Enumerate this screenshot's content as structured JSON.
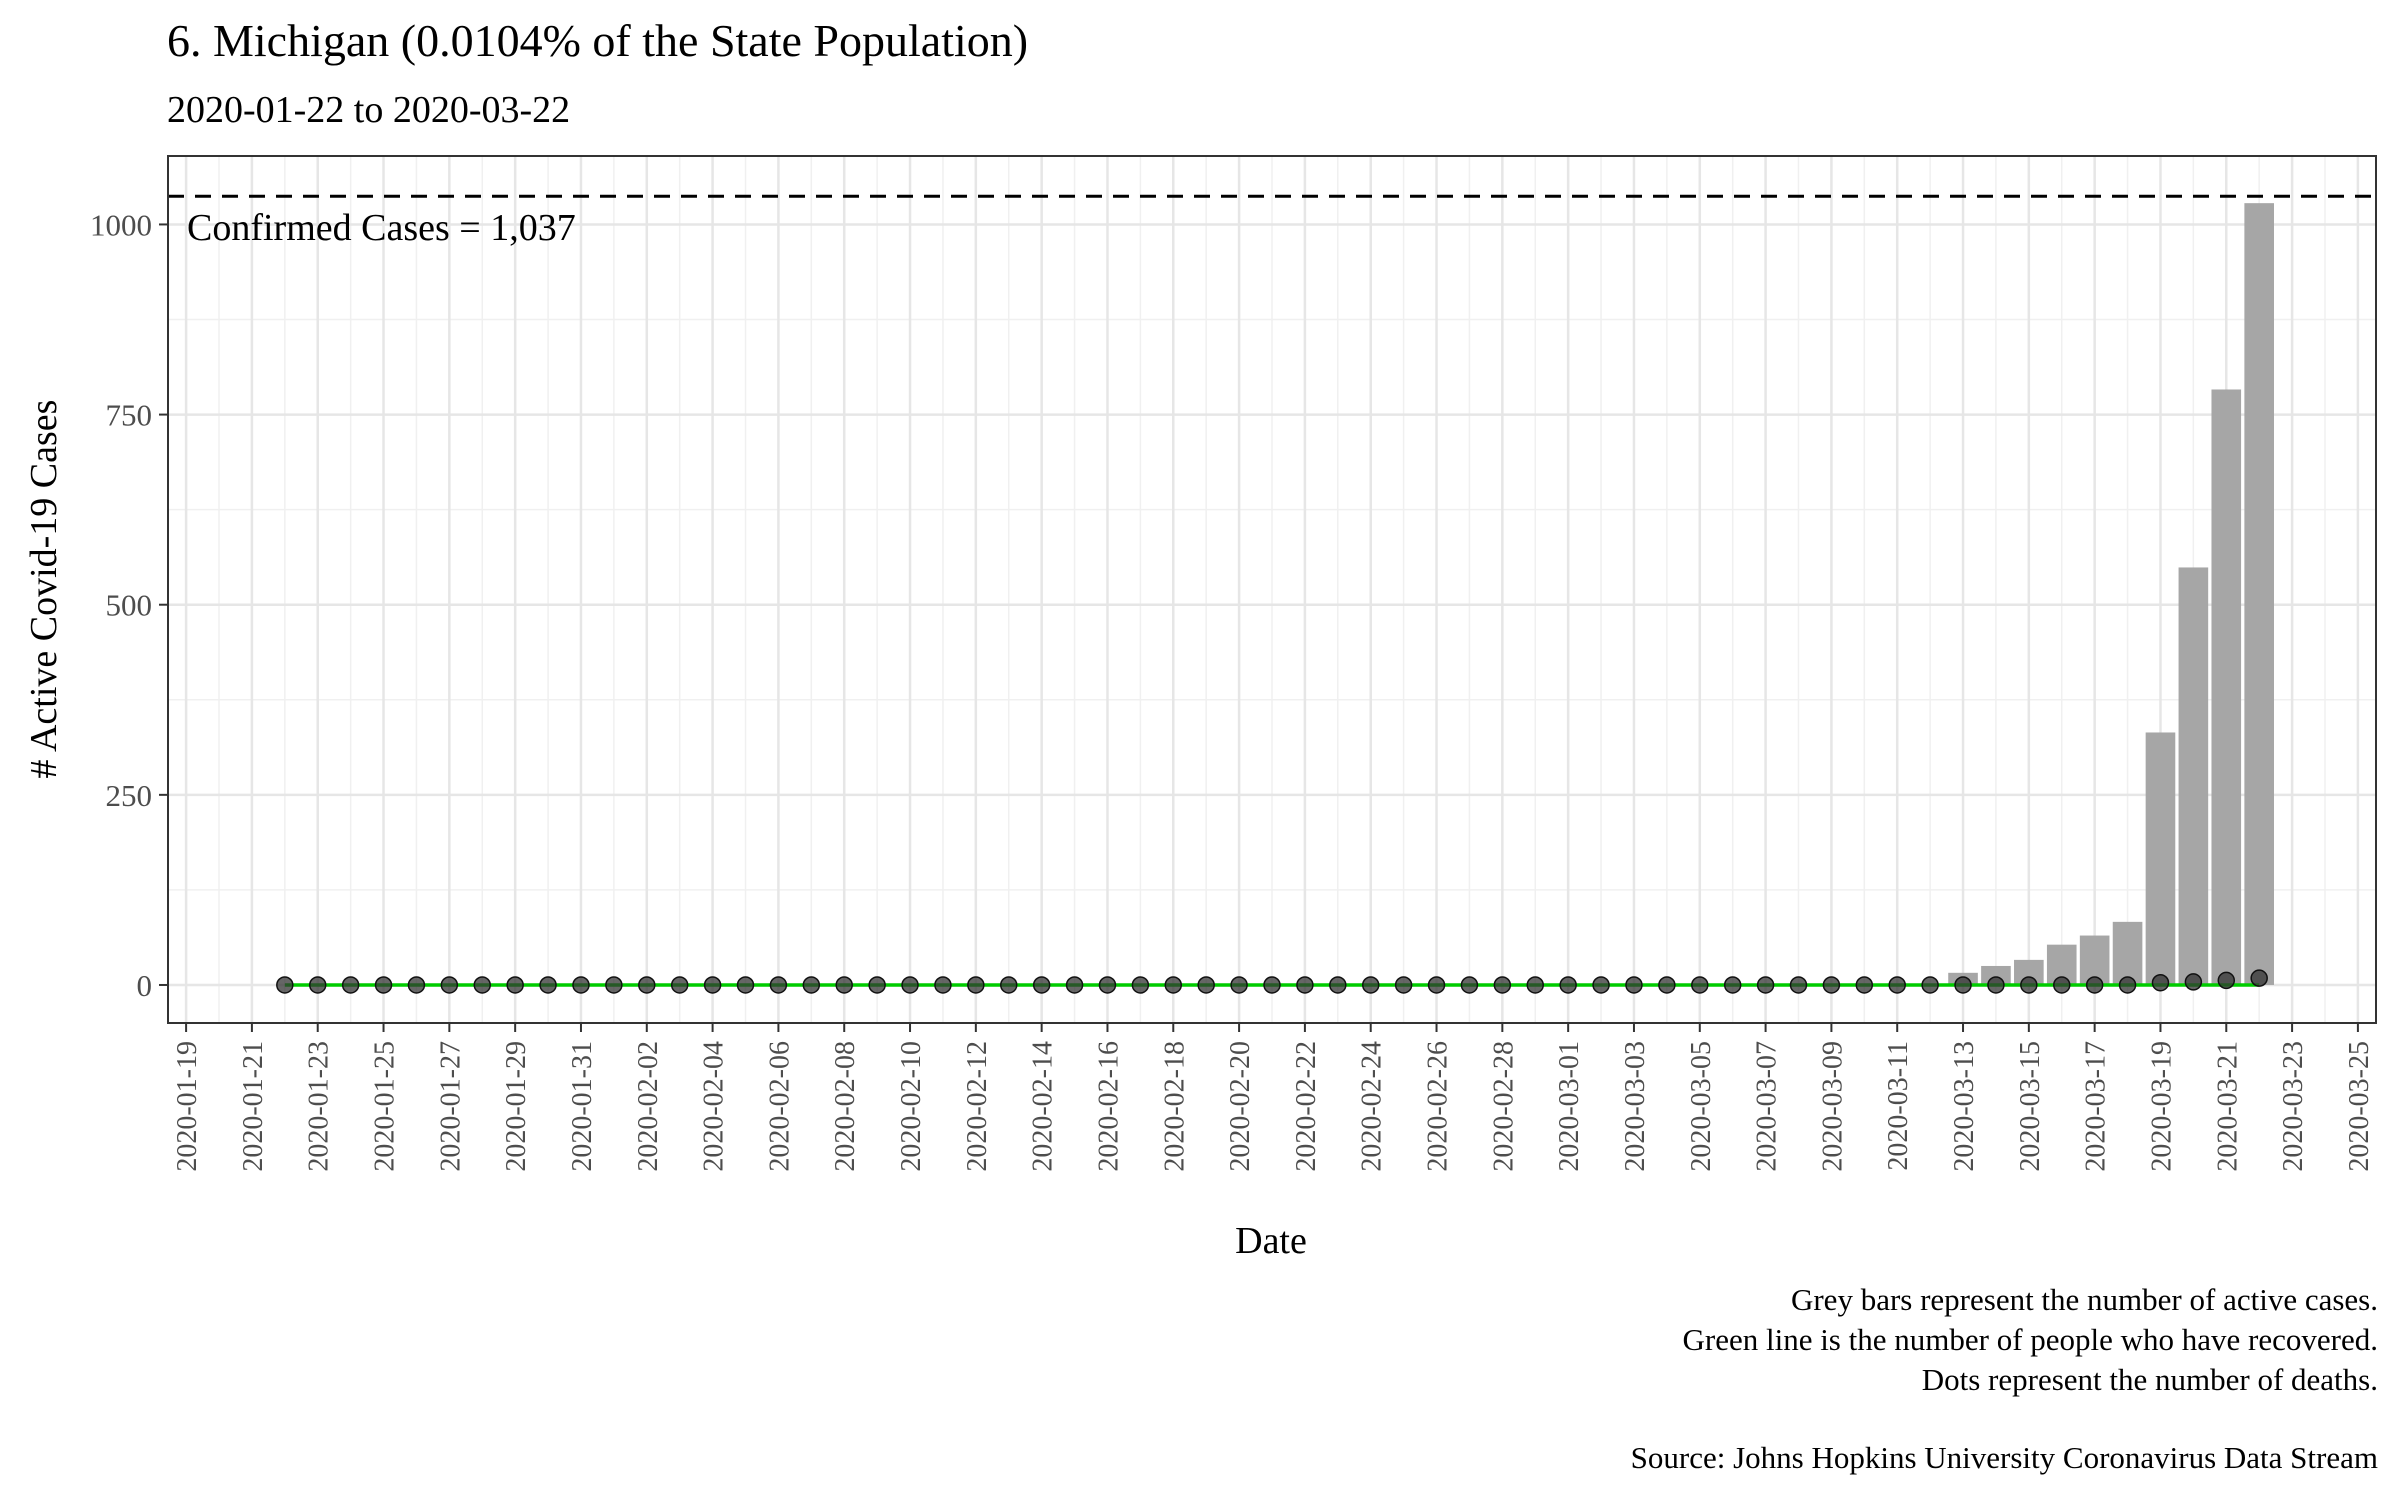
{
  "chart_data": {
    "type": "bar",
    "title": "6. Michigan (0.0104% of the State Population)",
    "subtitle": "2020-01-22 to 2020-03-22",
    "xlabel": "Date",
    "ylabel": "# Active Covid-19 Cases",
    "xlim": [
      "2020-01-19",
      "2020-03-25"
    ],
    "ylim": [
      -50,
      1090
    ],
    "y_ticks": [
      0,
      250,
      500,
      750,
      1000
    ],
    "x_ticks": [
      "2020-01-19",
      "2020-01-21",
      "2020-01-23",
      "2020-01-25",
      "2020-01-27",
      "2020-01-29",
      "2020-01-31",
      "2020-02-02",
      "2020-02-04",
      "2020-02-06",
      "2020-02-08",
      "2020-02-10",
      "2020-02-12",
      "2020-02-14",
      "2020-02-16",
      "2020-02-18",
      "2020-02-20",
      "2020-02-22",
      "2020-02-24",
      "2020-02-26",
      "2020-02-28",
      "2020-03-01",
      "2020-03-03",
      "2020-03-05",
      "2020-03-07",
      "2020-03-09",
      "2020-03-11",
      "2020-03-13",
      "2020-03-15",
      "2020-03-17",
      "2020-03-19",
      "2020-03-21",
      "2020-03-23",
      "2020-03-25"
    ],
    "grid": true,
    "date_range": [
      "2020-01-22",
      "2020-03-22"
    ],
    "series": [
      {
        "kind": "bar",
        "color": "#a6a6a6",
        "sparse_values": {
          "2020-03-13": 16,
          "2020-03-14": 25,
          "2020-03-15": 33,
          "2020-03-16": 53,
          "2020-03-17": 65,
          "2020-03-18": 83,
          "2020-03-19": 332,
          "2020-03-20": 549,
          "2020-03-21": 783,
          "2020-03-22": 1028
        }
      },
      {
        "kind": "line",
        "color": "#00cc00",
        "values_all": 0
      },
      {
        "kind": "points",
        "color": "#333333",
        "sparse_values": {
          "2020-03-19": 3,
          "2020-03-20": 4,
          "2020-03-21": 6,
          "2020-03-22": 9
        }
      }
    ],
    "reference_line": {
      "value": 1037,
      "label": "Confirmed Cases = 1,037"
    }
  },
  "caption": {
    "line1": "Grey bars represent the number of active cases.",
    "line2": "Green line is the number of people who have recovered.",
    "line3": "Dots represent the number of deaths.",
    "source": "Source: Johns Hopkins University Coronavirus Data Stream"
  }
}
